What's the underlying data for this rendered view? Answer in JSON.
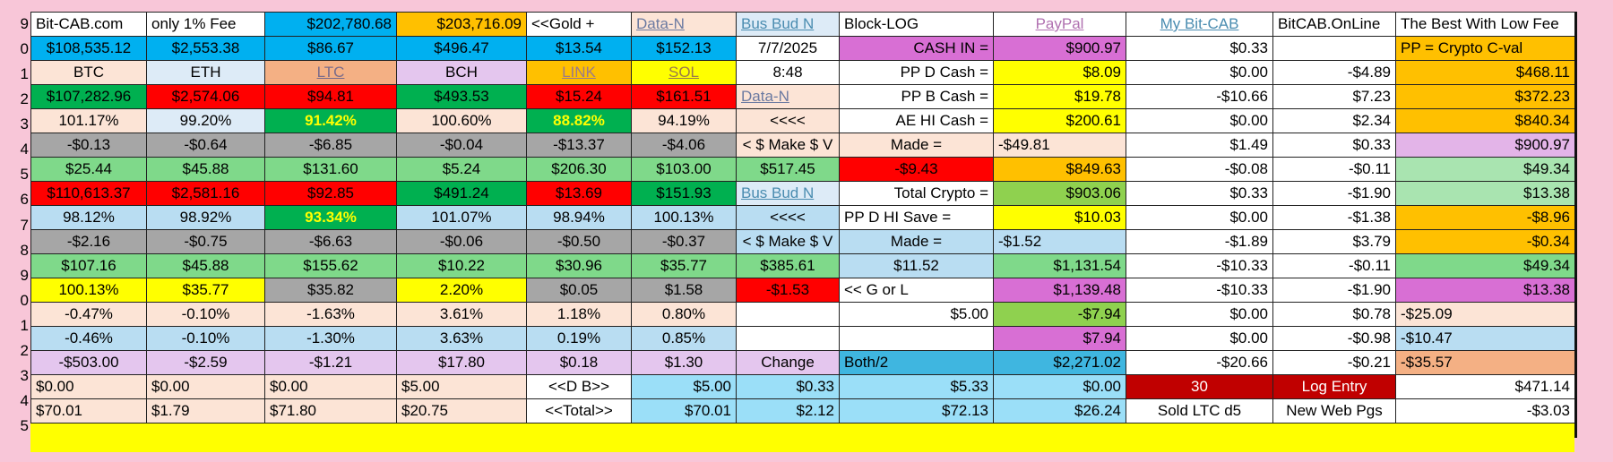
{
  "row_numbers": [
    "9",
    "0",
    "1",
    "2",
    "3",
    "4",
    "5",
    "6",
    "7",
    "8",
    "9",
    "0",
    "1",
    "2",
    "3",
    "4",
    "5"
  ],
  "colors": {
    "page_background": "#f8c6d8",
    "sheet_background": "#ffff00",
    "cell_fills": {
      "W": "#ffffff",
      "SK": "#00b0f0",
      "OR": "#ffc000",
      "PE": "#fce4d6",
      "LB": "#ddebf7",
      "SA": "#f4b084",
      "LV": "#e4c6ee",
      "YL": "#ffff00",
      "GR": "#00b050",
      "RD": "#ff0000",
      "LG": "#7fd98a",
      "GY": "#a6a6a6",
      "MG": "#d86fd4",
      "CY": "#9bdff8",
      "SB": "#bcdff0",
      "TL": "#3fb6e0",
      "DR": "#c00000",
      "LB2": "#b9ddf2",
      "YG": "#8fd14f",
      "MA": "#e3b4e8",
      "LG2": "#a9e4b0"
    }
  },
  "rows": [
    [
      {
        "t": "Bit-CAB.com",
        "bg": "W",
        "a": "l"
      },
      {
        "t": "only 1% Fee",
        "bg": "W",
        "a": "l"
      },
      {
        "t": "$202,780.68",
        "bg": "SK",
        "a": "r"
      },
      {
        "t": "$203,716.09",
        "bg": "OR",
        "a": "r"
      },
      {
        "t": "<<Gold +",
        "bg": "W",
        "a": "l"
      },
      {
        "t": "Data-N",
        "bg": "PE",
        "a": "l",
        "link": true,
        "fg": "#6b7aa1"
      },
      {
        "t": "Bus Bud N",
        "bg": "LB",
        "a": "l",
        "link": true,
        "fg": "#4a8cb0"
      },
      {
        "t": "Block-LOG",
        "bg": "W",
        "a": "l"
      },
      {
        "t": "PayPal",
        "bg": "W",
        "a": "c",
        "link": true,
        "fg": "#b070b0"
      },
      {
        "t": "My Bit-CAB",
        "bg": "W",
        "a": "c",
        "link": true,
        "fg": "#4a8cb0"
      },
      {
        "t": "BitCAB.OnLine",
        "bg": "W",
        "a": "l"
      },
      {
        "t": "The Best With Low Fee",
        "bg": "W",
        "a": "l"
      }
    ],
    [
      {
        "t": "$108,535.12",
        "bg": "SK",
        "a": "c"
      },
      {
        "t": "$2,553.38",
        "bg": "SK",
        "a": "c"
      },
      {
        "t": "$86.67",
        "bg": "SK",
        "a": "c"
      },
      {
        "t": "$496.47",
        "bg": "SK",
        "a": "c"
      },
      {
        "t": "$13.54",
        "bg": "SK",
        "a": "c"
      },
      {
        "t": "$152.13",
        "bg": "SK",
        "a": "c"
      },
      {
        "t": "7/7/2025",
        "bg": "W",
        "a": "c"
      },
      {
        "t": "CASH IN =",
        "bg": "MG",
        "a": "r"
      },
      {
        "t": "$900.97",
        "bg": "MG",
        "a": "r"
      },
      {
        "t": "$0.33",
        "bg": "W",
        "a": "r"
      },
      {
        "t": "",
        "bg": "W",
        "a": "r"
      },
      {
        "t": "PP = Crypto C-val",
        "bg": "OR",
        "a": "l"
      }
    ],
    [
      {
        "t": "BTC",
        "bg": "PE",
        "a": "c"
      },
      {
        "t": "ETH",
        "bg": "LB",
        "a": "c"
      },
      {
        "t": "LTC",
        "bg": "SA",
        "a": "c",
        "link": true,
        "fg": "#7a6b8a"
      },
      {
        "t": "BCH",
        "bg": "LV",
        "a": "c"
      },
      {
        "t": "LINK",
        "bg": "OR",
        "a": "c",
        "link": true,
        "fg": "#9a7a8a"
      },
      {
        "t": "SOL",
        "bg": "YL",
        "a": "c",
        "link": true,
        "fg": "#9a7a4a"
      },
      {
        "t": "8:48",
        "bg": "W",
        "a": "c"
      },
      {
        "t": "PP  D  Cash =",
        "bg": "W",
        "a": "r"
      },
      {
        "t": "$8.09",
        "bg": "YL",
        "a": "r"
      },
      {
        "t": "$0.00",
        "bg": "W",
        "a": "r"
      },
      {
        "t": "-$4.89",
        "bg": "W",
        "a": "r"
      },
      {
        "t": "$468.11",
        "bg": "OR",
        "a": "r"
      }
    ],
    [
      {
        "t": "$107,282.96",
        "bg": "GR",
        "a": "c"
      },
      {
        "t": "$2,574.06",
        "bg": "RD",
        "a": "c"
      },
      {
        "t": "$94.81",
        "bg": "RD",
        "a": "c"
      },
      {
        "t": "$493.53",
        "bg": "GR",
        "a": "c"
      },
      {
        "t": "$15.24",
        "bg": "RD",
        "a": "c"
      },
      {
        "t": "$161.51",
        "bg": "RD",
        "a": "c"
      },
      {
        "t": "Data-N",
        "bg": "PE",
        "a": "l",
        "link": true,
        "fg": "#6b7aa1"
      },
      {
        "t": "PP  B  Cash =",
        "bg": "W",
        "a": "r"
      },
      {
        "t": "$19.78",
        "bg": "YL",
        "a": "r"
      },
      {
        "t": "-$10.66",
        "bg": "W",
        "a": "r"
      },
      {
        "t": "$7.23",
        "bg": "W",
        "a": "r"
      },
      {
        "t": "$372.23",
        "bg": "OR",
        "a": "r"
      }
    ],
    [
      {
        "t": "101.17%",
        "bg": "PE",
        "a": "c"
      },
      {
        "t": "99.20%",
        "bg": "LB",
        "a": "c"
      },
      {
        "t": "91.42%",
        "bg": "GR",
        "a": "c",
        "bold": true,
        "fg": "#ffff00"
      },
      {
        "t": "100.60%",
        "bg": "PE",
        "a": "c"
      },
      {
        "t": "88.82%",
        "bg": "GR",
        "a": "c",
        "bold": true,
        "fg": "#ffff00"
      },
      {
        "t": "94.19%",
        "bg": "PE",
        "a": "c"
      },
      {
        "t": "<<<<",
        "bg": "PE",
        "a": "c"
      },
      {
        "t": "AE HI Cash =",
        "bg": "W",
        "a": "r"
      },
      {
        "t": "$200.61",
        "bg": "YL",
        "a": "r"
      },
      {
        "t": "$0.00",
        "bg": "W",
        "a": "r"
      },
      {
        "t": "$2.34",
        "bg": "W",
        "a": "r"
      },
      {
        "t": "$840.34",
        "bg": "OR",
        "a": "r"
      }
    ],
    [
      {
        "t": "-$0.13",
        "bg": "GY",
        "a": "c"
      },
      {
        "t": "-$0.64",
        "bg": "GY",
        "a": "c"
      },
      {
        "t": "-$6.85",
        "bg": "GY",
        "a": "c"
      },
      {
        "t": "-$0.04",
        "bg": "GY",
        "a": "c"
      },
      {
        "t": "-$13.37",
        "bg": "GY",
        "a": "c"
      },
      {
        "t": "-$4.06",
        "bg": "GY",
        "a": "c"
      },
      {
        "t": "< $ Make $ V",
        "bg": "PE",
        "a": "c"
      },
      {
        "t": "Made =",
        "bg": "PE",
        "a": "c"
      },
      {
        "t": "-$49.81",
        "bg": "PE",
        "a": "l"
      },
      {
        "t": "$1.49",
        "bg": "W",
        "a": "r"
      },
      {
        "t": "$0.33",
        "bg": "W",
        "a": "r"
      },
      {
        "t": "$900.97",
        "bg": "MA",
        "a": "r"
      }
    ],
    [
      {
        "t": "$25.44",
        "bg": "LG",
        "a": "c"
      },
      {
        "t": "$45.88",
        "bg": "LG",
        "a": "c"
      },
      {
        "t": "$131.60",
        "bg": "LG",
        "a": "c"
      },
      {
        "t": "$5.24",
        "bg": "LG",
        "a": "c"
      },
      {
        "t": "$206.30",
        "bg": "LG",
        "a": "c"
      },
      {
        "t": "$103.00",
        "bg": "LG",
        "a": "c"
      },
      {
        "t": "$517.45",
        "bg": "LG",
        "a": "c"
      },
      {
        "t": "-$9.43",
        "bg": "RD",
        "a": "c"
      },
      {
        "t": "$849.63",
        "bg": "OR",
        "a": "r"
      },
      {
        "t": "-$0.08",
        "bg": "W",
        "a": "r"
      },
      {
        "t": "-$0.11",
        "bg": "W",
        "a": "r"
      },
      {
        "t": "$49.34",
        "bg": "LG2",
        "a": "r"
      }
    ],
    [
      {
        "t": "$110,613.37",
        "bg": "RD",
        "a": "c"
      },
      {
        "t": "$2,581.16",
        "bg": "RD",
        "a": "c"
      },
      {
        "t": "$92.85",
        "bg": "RD",
        "a": "c"
      },
      {
        "t": "$491.24",
        "bg": "GR",
        "a": "c"
      },
      {
        "t": "$13.69",
        "bg": "RD",
        "a": "c"
      },
      {
        "t": "$151.93",
        "bg": "GR",
        "a": "c"
      },
      {
        "t": "Bus Bud N",
        "bg": "LB",
        "a": "l",
        "link": true,
        "fg": "#4a8cb0"
      },
      {
        "t": "Total Crypto =",
        "bg": "W",
        "a": "r"
      },
      {
        "t": "$903.06",
        "bg": "YG",
        "a": "r"
      },
      {
        "t": "$0.33",
        "bg": "W",
        "a": "r"
      },
      {
        "t": "-$1.90",
        "bg": "W",
        "a": "r"
      },
      {
        "t": "$13.38",
        "bg": "LG2",
        "a": "r"
      }
    ],
    [
      {
        "t": "98.12%",
        "bg": "LB2",
        "a": "c"
      },
      {
        "t": "98.92%",
        "bg": "LB2",
        "a": "c"
      },
      {
        "t": "93.34%",
        "bg": "GR",
        "a": "c",
        "bold": true,
        "fg": "#ffff00"
      },
      {
        "t": "101.07%",
        "bg": "LB2",
        "a": "c"
      },
      {
        "t": "98.94%",
        "bg": "LB2",
        "a": "c"
      },
      {
        "t": "100.13%",
        "bg": "LB2",
        "a": "c"
      },
      {
        "t": "<<<<",
        "bg": "LB2",
        "a": "c"
      },
      {
        "t": "PP D HI Save =",
        "bg": "W",
        "a": "l"
      },
      {
        "t": "$10.03",
        "bg": "YL",
        "a": "r"
      },
      {
        "t": "$0.00",
        "bg": "W",
        "a": "r"
      },
      {
        "t": "-$1.38",
        "bg": "W",
        "a": "r"
      },
      {
        "t": "-$8.96",
        "bg": "OR",
        "a": "r"
      }
    ],
    [
      {
        "t": "-$2.16",
        "bg": "GY",
        "a": "c"
      },
      {
        "t": "-$0.75",
        "bg": "GY",
        "a": "c"
      },
      {
        "t": "-$6.63",
        "bg": "GY",
        "a": "c"
      },
      {
        "t": "-$0.06",
        "bg": "GY",
        "a": "c"
      },
      {
        "t": "-$0.50",
        "bg": "GY",
        "a": "c"
      },
      {
        "t": "-$0.37",
        "bg": "GY",
        "a": "c"
      },
      {
        "t": "< $ Make $ V",
        "bg": "LB2",
        "a": "c"
      },
      {
        "t": "Made =",
        "bg": "LB2",
        "a": "c"
      },
      {
        "t": "-$1.52",
        "bg": "LB2",
        "a": "l"
      },
      {
        "t": "-$1.89",
        "bg": "W",
        "a": "r"
      },
      {
        "t": "$3.79",
        "bg": "W",
        "a": "r"
      },
      {
        "t": "-$0.34",
        "bg": "OR",
        "a": "r"
      }
    ],
    [
      {
        "t": "$107.16",
        "bg": "LG",
        "a": "c"
      },
      {
        "t": "$45.88",
        "bg": "LG",
        "a": "c"
      },
      {
        "t": "$155.62",
        "bg": "LG",
        "a": "c"
      },
      {
        "t": "$10.22",
        "bg": "LG",
        "a": "c"
      },
      {
        "t": "$30.96",
        "bg": "LG",
        "a": "c"
      },
      {
        "t": "$35.77",
        "bg": "LG",
        "a": "c"
      },
      {
        "t": "$385.61",
        "bg": "LG",
        "a": "c"
      },
      {
        "t": "$11.52",
        "bg": "LB2",
        "a": "c"
      },
      {
        "t": "$1,131.54",
        "bg": "LG",
        "a": "r"
      },
      {
        "t": "-$10.33",
        "bg": "W",
        "a": "r"
      },
      {
        "t": "-$0.11",
        "bg": "W",
        "a": "r"
      },
      {
        "t": "$49.34",
        "bg": "LG",
        "a": "r"
      }
    ],
    [
      {
        "t": "100.13%",
        "bg": "YL",
        "a": "c"
      },
      {
        "t": "$35.77",
        "bg": "YL",
        "a": "c"
      },
      {
        "t": "$35.82",
        "bg": "GY",
        "a": "c"
      },
      {
        "t": "2.20%",
        "bg": "YL",
        "a": "c"
      },
      {
        "t": "$0.05",
        "bg": "GY",
        "a": "c"
      },
      {
        "t": "$1.58",
        "bg": "GY",
        "a": "c"
      },
      {
        "t": "-$1.53",
        "bg": "RD",
        "a": "c"
      },
      {
        "t": "<< G or L",
        "bg": "W",
        "a": "l"
      },
      {
        "t": "$1,139.48",
        "bg": "MG",
        "a": "r"
      },
      {
        "t": "-$10.33",
        "bg": "W",
        "a": "r"
      },
      {
        "t": "-$1.90",
        "bg": "W",
        "a": "r"
      },
      {
        "t": "$13.38",
        "bg": "MG",
        "a": "r"
      }
    ],
    [
      {
        "t": "-0.47%",
        "bg": "PE",
        "a": "c"
      },
      {
        "t": "-0.10%",
        "bg": "PE",
        "a": "c"
      },
      {
        "t": "-1.63%",
        "bg": "PE",
        "a": "c"
      },
      {
        "t": "3.61%",
        "bg": "PE",
        "a": "c"
      },
      {
        "t": "1.18%",
        "bg": "PE",
        "a": "c"
      },
      {
        "t": "0.80%",
        "bg": "PE",
        "a": "c"
      },
      {
        "t": "",
        "bg": "W",
        "a": "c"
      },
      {
        "t": "$5.00",
        "bg": "W",
        "a": "r"
      },
      {
        "t": "-$7.94",
        "bg": "YG",
        "a": "r"
      },
      {
        "t": "$0.00",
        "bg": "W",
        "a": "r"
      },
      {
        "t": "$0.78",
        "bg": "W",
        "a": "r"
      },
      {
        "t": "-$25.09",
        "bg": "PE",
        "a": "l"
      }
    ],
    [
      {
        "t": "-0.46%",
        "bg": "LB2",
        "a": "c"
      },
      {
        "t": "-0.10%",
        "bg": "LB2",
        "a": "c"
      },
      {
        "t": "-1.30%",
        "bg": "LB2",
        "a": "c"
      },
      {
        "t": "3.63%",
        "bg": "LB2",
        "a": "c"
      },
      {
        "t": "0.19%",
        "bg": "LB2",
        "a": "c"
      },
      {
        "t": "0.85%",
        "bg": "LB2",
        "a": "c"
      },
      {
        "t": "",
        "bg": "W",
        "a": "c"
      },
      {
        "t": "",
        "bg": "W",
        "a": "r"
      },
      {
        "t": "$7.94",
        "bg": "MG",
        "a": "r"
      },
      {
        "t": "$0.00",
        "bg": "W",
        "a": "r"
      },
      {
        "t": "-$0.98",
        "bg": "W",
        "a": "r"
      },
      {
        "t": "-$10.47",
        "bg": "LB2",
        "a": "l"
      }
    ],
    [
      {
        "t": "-$503.00",
        "bg": "LV",
        "a": "c"
      },
      {
        "t": "-$2.59",
        "bg": "LV",
        "a": "c"
      },
      {
        "t": "-$1.21",
        "bg": "LV",
        "a": "c"
      },
      {
        "t": "$17.80",
        "bg": "LV",
        "a": "c"
      },
      {
        "t": "$0.18",
        "bg": "LV",
        "a": "c"
      },
      {
        "t": "$1.30",
        "bg": "LV",
        "a": "c"
      },
      {
        "t": "Change",
        "bg": "LV",
        "a": "c"
      },
      {
        "t": "Both/2",
        "bg": "TL",
        "a": "l"
      },
      {
        "t": "$2,271.02",
        "bg": "TL",
        "a": "r"
      },
      {
        "t": "-$20.66",
        "bg": "W",
        "a": "r"
      },
      {
        "t": "-$0.21",
        "bg": "W",
        "a": "r"
      },
      {
        "t": "-$35.57",
        "bg": "SA",
        "a": "l"
      }
    ],
    [
      {
        "t": "$0.00",
        "bg": "PE",
        "a": "l"
      },
      {
        "t": "$0.00",
        "bg": "PE",
        "a": "l"
      },
      {
        "t": "$0.00",
        "bg": "PE",
        "a": "l"
      },
      {
        "t": "$5.00",
        "bg": "PE",
        "a": "l"
      },
      {
        "t": "<<D  B>>",
        "bg": "W",
        "a": "c"
      },
      {
        "t": "$5.00",
        "bg": "CY",
        "a": "r"
      },
      {
        "t": "$0.33",
        "bg": "CY",
        "a": "r"
      },
      {
        "t": "$5.33",
        "bg": "CY",
        "a": "r"
      },
      {
        "t": "$0.00",
        "bg": "CY",
        "a": "r"
      },
      {
        "t": "30",
        "bg": "DR",
        "a": "c",
        "fg": "#ffffff"
      },
      {
        "t": "Log Entry",
        "bg": "DR",
        "a": "c",
        "fg": "#ffffff"
      },
      {
        "t": "$471.14",
        "bg": "W",
        "a": "r"
      }
    ],
    [
      {
        "t": "$70.01",
        "bg": "PE",
        "a": "l"
      },
      {
        "t": "$1.79",
        "bg": "PE",
        "a": "l"
      },
      {
        "t": "$71.80",
        "bg": "PE",
        "a": "l"
      },
      {
        "t": "$20.75",
        "bg": "PE",
        "a": "l"
      },
      {
        "t": "<<Total>>",
        "bg": "W",
        "a": "c"
      },
      {
        "t": "$70.01",
        "bg": "CY",
        "a": "r"
      },
      {
        "t": "$2.12",
        "bg": "CY",
        "a": "r"
      },
      {
        "t": "$72.13",
        "bg": "CY",
        "a": "r"
      },
      {
        "t": "$26.24",
        "bg": "CY",
        "a": "r"
      },
      {
        "t": "Sold LTC d5",
        "bg": "W",
        "a": "c"
      },
      {
        "t": "New Web Pgs",
        "bg": "W",
        "a": "c"
      },
      {
        "t": "-$3.03",
        "bg": "W",
        "a": "r"
      }
    ]
  ]
}
